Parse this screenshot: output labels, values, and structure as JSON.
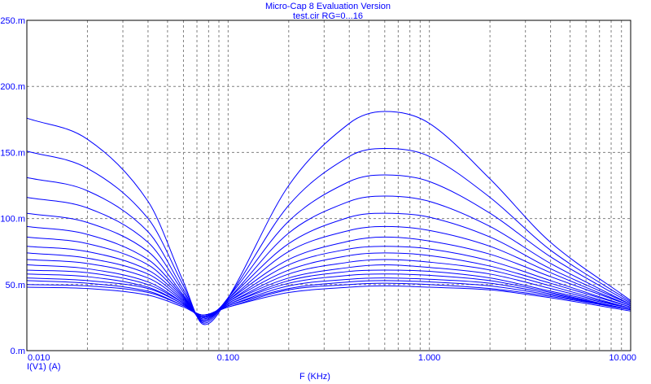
{
  "chart_data": {
    "type": "line",
    "title": "Micro-Cap 8 Evaluation Version",
    "subtitle": "test.cir RG=0...16",
    "xlabel": "F (KHz)",
    "ylabel": "I(V1) (A)",
    "x_scale": "log",
    "xlim": [
      0.01,
      10
    ],
    "ylim": [
      0,
      0.25
    ],
    "grid": true,
    "x_ticks": [
      {
        "value": 0.01,
        "label": "0.010"
      },
      {
        "value": 0.1,
        "label": "0.100"
      },
      {
        "value": 1,
        "label": "1.000"
      },
      {
        "value": 10,
        "label": "10.000"
      }
    ],
    "y_ticks": [
      {
        "value": 0,
        "label": "0.m"
      },
      {
        "value": 0.05,
        "label": "50.m"
      },
      {
        "value": 0.1,
        "label": "100.m"
      },
      {
        "value": 0.15,
        "label": "150.m"
      },
      {
        "value": 0.2,
        "label": "200.m"
      },
      {
        "value": 0.25,
        "label": "250.m"
      }
    ],
    "series_color": "#0000ff",
    "series": [
      {
        "x": [
          0.01,
          0.02,
          0.04,
          0.06,
          0.075,
          0.1,
          0.2,
          0.4,
          0.6,
          1,
          2,
          4,
          10
        ],
        "values": [
          0.176,
          0.16,
          0.113,
          0.052,
          0.02,
          0.04,
          0.125,
          0.172,
          0.181,
          0.172,
          0.13,
          0.082,
          0.038
        ]
      },
      {
        "x": [
          0.01,
          0.02,
          0.04,
          0.06,
          0.075,
          0.1,
          0.2,
          0.4,
          0.6,
          1,
          2,
          4,
          10
        ],
        "values": [
          0.151,
          0.138,
          0.1,
          0.049,
          0.021,
          0.04,
          0.11,
          0.147,
          0.153,
          0.147,
          0.116,
          0.076,
          0.037
        ]
      },
      {
        "x": [
          0.01,
          0.02,
          0.04,
          0.06,
          0.075,
          0.1,
          0.2,
          0.4,
          0.6,
          1,
          2,
          4,
          10
        ],
        "values": [
          0.131,
          0.121,
          0.09,
          0.046,
          0.022,
          0.04,
          0.098,
          0.128,
          0.133,
          0.128,
          0.104,
          0.071,
          0.036
        ]
      },
      {
        "x": [
          0.01,
          0.02,
          0.04,
          0.06,
          0.075,
          0.1,
          0.2,
          0.4,
          0.6,
          1,
          2,
          4,
          10
        ],
        "values": [
          0.116,
          0.108,
          0.082,
          0.044,
          0.022,
          0.039,
          0.089,
          0.113,
          0.117,
          0.113,
          0.094,
          0.066,
          0.035
        ]
      },
      {
        "x": [
          0.01,
          0.02,
          0.04,
          0.06,
          0.075,
          0.1,
          0.2,
          0.4,
          0.6,
          1,
          2,
          4,
          10
        ],
        "values": [
          0.104,
          0.097,
          0.075,
          0.042,
          0.023,
          0.039,
          0.081,
          0.101,
          0.104,
          0.101,
          0.086,
          0.062,
          0.035
        ]
      },
      {
        "x": [
          0.01,
          0.02,
          0.04,
          0.06,
          0.075,
          0.1,
          0.2,
          0.4,
          0.6,
          1,
          2,
          4,
          10
        ],
        "values": [
          0.094,
          0.088,
          0.069,
          0.041,
          0.023,
          0.038,
          0.075,
          0.091,
          0.094,
          0.091,
          0.079,
          0.059,
          0.034
        ]
      },
      {
        "x": [
          0.01,
          0.02,
          0.04,
          0.06,
          0.075,
          0.1,
          0.2,
          0.4,
          0.6,
          1,
          2,
          4,
          10
        ],
        "values": [
          0.086,
          0.081,
          0.065,
          0.04,
          0.024,
          0.038,
          0.069,
          0.083,
          0.086,
          0.083,
          0.073,
          0.056,
          0.034
        ]
      },
      {
        "x": [
          0.01,
          0.02,
          0.04,
          0.06,
          0.075,
          0.1,
          0.2,
          0.4,
          0.6,
          1,
          2,
          4,
          10
        ],
        "values": [
          0.079,
          0.075,
          0.061,
          0.039,
          0.024,
          0.037,
          0.065,
          0.077,
          0.079,
          0.077,
          0.068,
          0.053,
          0.033
        ]
      },
      {
        "x": [
          0.01,
          0.02,
          0.04,
          0.06,
          0.075,
          0.1,
          0.2,
          0.4,
          0.6,
          1,
          2,
          4,
          10
        ],
        "values": [
          0.074,
          0.07,
          0.058,
          0.038,
          0.025,
          0.037,
          0.061,
          0.072,
          0.074,
          0.072,
          0.064,
          0.051,
          0.033
        ]
      },
      {
        "x": [
          0.01,
          0.02,
          0.04,
          0.06,
          0.075,
          0.1,
          0.2,
          0.4,
          0.6,
          1,
          2,
          4,
          10
        ],
        "values": [
          0.069,
          0.066,
          0.055,
          0.037,
          0.025,
          0.036,
          0.058,
          0.067,
          0.069,
          0.067,
          0.061,
          0.049,
          0.032
        ]
      },
      {
        "x": [
          0.01,
          0.02,
          0.04,
          0.06,
          0.075,
          0.1,
          0.2,
          0.4,
          0.6,
          1,
          2,
          4,
          10
        ],
        "values": [
          0.065,
          0.062,
          0.052,
          0.036,
          0.025,
          0.036,
          0.055,
          0.063,
          0.065,
          0.063,
          0.058,
          0.047,
          0.032
        ]
      },
      {
        "x": [
          0.01,
          0.02,
          0.04,
          0.06,
          0.075,
          0.1,
          0.2,
          0.4,
          0.6,
          1,
          2,
          4,
          10
        ],
        "values": [
          0.061,
          0.059,
          0.05,
          0.036,
          0.026,
          0.035,
          0.053,
          0.06,
          0.061,
          0.06,
          0.055,
          0.045,
          0.032
        ]
      },
      {
        "x": [
          0.01,
          0.02,
          0.04,
          0.06,
          0.075,
          0.1,
          0.2,
          0.4,
          0.6,
          1,
          2,
          4,
          10
        ],
        "values": [
          0.058,
          0.056,
          0.048,
          0.035,
          0.026,
          0.035,
          0.051,
          0.057,
          0.058,
          0.057,
          0.053,
          0.044,
          0.031
        ]
      },
      {
        "x": [
          0.01,
          0.02,
          0.04,
          0.06,
          0.075,
          0.1,
          0.2,
          0.4,
          0.6,
          1,
          2,
          4,
          10
        ],
        "values": [
          0.055,
          0.053,
          0.047,
          0.035,
          0.026,
          0.034,
          0.049,
          0.054,
          0.055,
          0.054,
          0.051,
          0.043,
          0.031
        ]
      },
      {
        "x": [
          0.01,
          0.02,
          0.04,
          0.06,
          0.075,
          0.1,
          0.2,
          0.4,
          0.6,
          1,
          2,
          4,
          10
        ],
        "values": [
          0.053,
          0.051,
          0.045,
          0.034,
          0.027,
          0.034,
          0.047,
          0.052,
          0.053,
          0.052,
          0.049,
          0.042,
          0.031
        ]
      },
      {
        "x": [
          0.01,
          0.02,
          0.04,
          0.06,
          0.075,
          0.1,
          0.2,
          0.4,
          0.6,
          1,
          2,
          4,
          10
        ],
        "values": [
          0.05,
          0.049,
          0.044,
          0.034,
          0.027,
          0.033,
          0.046,
          0.05,
          0.051,
          0.05,
          0.047,
          0.041,
          0.031
        ]
      },
      {
        "x": [
          0.01,
          0.02,
          0.04,
          0.06,
          0.075,
          0.1,
          0.2,
          0.4,
          0.6,
          1,
          2,
          4,
          10
        ],
        "values": [
          0.048,
          0.047,
          0.042,
          0.033,
          0.027,
          0.033,
          0.044,
          0.048,
          0.049,
          0.048,
          0.046,
          0.04,
          0.03
        ]
      }
    ]
  }
}
